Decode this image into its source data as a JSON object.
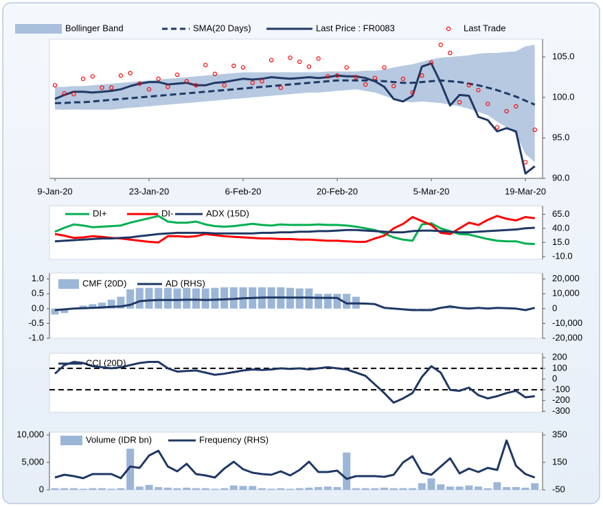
{
  "chart_data": [
    {
      "type": "line",
      "categories": [
        "9-Jan-20",
        null,
        null,
        null,
        null,
        null,
        null,
        null,
        null,
        null,
        "23-Jan-20",
        null,
        null,
        null,
        null,
        null,
        null,
        null,
        null,
        null,
        "6-Feb-20",
        null,
        null,
        null,
        null,
        null,
        null,
        null,
        null,
        null,
        "20-Feb-20",
        null,
        null,
        null,
        null,
        null,
        null,
        null,
        null,
        null,
        "5-Mar-20",
        null,
        null,
        null,
        null,
        null,
        null,
        null,
        null,
        null,
        "19-Mar-20",
        null
      ],
      "ylim": [
        90,
        107.2
      ],
      "yticks": [
        {
          "value": 90,
          "label": "90.0"
        },
        {
          "value": 95,
          "label": "95.0"
        },
        {
          "value": 100,
          "label": "100.0"
        },
        {
          "value": 105,
          "label": "105.0"
        }
      ],
      "series": [
        {
          "name": "Bollinger Band",
          "style": "band",
          "color": "#a9bfdc",
          "upper": [
            101.3,
            101.3,
            101.4,
            101.4,
            101.5,
            101.6,
            101.7,
            101.8,
            101.9,
            102.0,
            102.1,
            102.2,
            102.3,
            102.4,
            102.5,
            102.6,
            102.7,
            102.8,
            102.9,
            103.0,
            103.1,
            103.1,
            103.1,
            103.1,
            103.1,
            103.1,
            103.1,
            103.1,
            103.1,
            103.2,
            103.2,
            103.2,
            103.2,
            103.3,
            103.3,
            103.4,
            103.7,
            103.9,
            104.1,
            104.4,
            104.7,
            104.9,
            105.0,
            105.1,
            105.2,
            105.4,
            105.5,
            105.5,
            105.6,
            105.7,
            106.3,
            106.5
          ],
          "lower": [
            98.5,
            98.5,
            98.5,
            98.5,
            98.5,
            98.5,
            98.5,
            98.6,
            98.7,
            98.8,
            98.9,
            99.0,
            99.1,
            99.2,
            99.3,
            99.4,
            99.5,
            99.6,
            99.7,
            99.8,
            99.9,
            100.0,
            100.1,
            100.2,
            100.3,
            100.4,
            100.5,
            100.6,
            100.6,
            100.7,
            100.8,
            100.9,
            101.0,
            100.8,
            100.6,
            100.2,
            99.8,
            99.5,
            99.4,
            99.5,
            99.4,
            99.3,
            99.1,
            98.9,
            98.6,
            98.2,
            97.8,
            97.0,
            96.3,
            95.5,
            93.0,
            92.0
          ]
        },
        {
          "name": "SMA(20 Days)",
          "style": "dashed",
          "color": "#1f3864",
          "values": [
            99.3,
            99.3,
            99.4,
            99.4,
            99.5,
            99.6,
            99.7,
            99.8,
            99.9,
            100.0,
            100.1,
            100.2,
            100.3,
            100.4,
            100.5,
            100.6,
            100.7,
            100.8,
            100.9,
            101.0,
            101.1,
            101.2,
            101.3,
            101.4,
            101.5,
            101.6,
            101.7,
            101.8,
            101.9,
            102.0,
            102.1,
            102.1,
            102.1,
            102.1,
            102.1,
            102.0,
            101.9,
            101.8,
            101.8,
            101.9,
            102.0,
            102.1,
            102.0,
            101.9,
            101.7,
            101.5,
            101.2,
            100.9,
            100.5,
            100.1,
            99.6,
            99.1
          ]
        },
        {
          "name": "Last Price : FR0083",
          "style": "line",
          "color": "#1f3864",
          "values": [
            99.8,
            100.3,
            100.7,
            100.7,
            100.6,
            100.7,
            100.8,
            101.0,
            101.4,
            101.7,
            101.9,
            101.9,
            101.6,
            101.7,
            101.8,
            101.5,
            101.5,
            101.8,
            101.9,
            102.1,
            102.3,
            102.2,
            102.3,
            102.5,
            102.4,
            102.3,
            102.4,
            102.5,
            102.4,
            102.5,
            102.7,
            102.6,
            102.6,
            102.4,
            102.0,
            101.3,
            99.8,
            99.5,
            100.2,
            103.8,
            104.2,
            101.8,
            99.0,
            100.3,
            100.2,
            97.6,
            97.2,
            95.8,
            96.2,
            95.8,
            90.6,
            91.5
          ]
        },
        {
          "name": "Last Trade",
          "style": "markers",
          "color": "#ff0000",
          "values": [
            101.5,
            100.5,
            100.4,
            102.3,
            102.6,
            101.2,
            101.2,
            102.7,
            103.0,
            101.7,
            101.0,
            102.3,
            101.3,
            102.8,
            102.0,
            101.5,
            104.0,
            102.9,
            101.5,
            103.9,
            103.7,
            101.8,
            102.0,
            104.6,
            101.2,
            104.9,
            104.4,
            103.8,
            104.8,
            102.6,
            102.7,
            103.7,
            102.5,
            101.6,
            102.4,
            103.7,
            101.4,
            102.3,
            100.6,
            102.7,
            104.3,
            106.5,
            105.5,
            99.4,
            101.5,
            100.9,
            99.2,
            96.3,
            98.3,
            98.9,
            92.0,
            96.0
          ]
        }
      ]
    },
    {
      "type": "line",
      "ylim": [
        -15,
        80
      ],
      "yticks": [
        {
          "value": -10,
          "label": "-10.0"
        },
        {
          "value": 15,
          "label": "15.0"
        },
        {
          "value": 40,
          "label": "40.0"
        },
        {
          "value": 65,
          "label": "65.0"
        }
      ],
      "series": [
        {
          "name": "DI+",
          "style": "line",
          "color": "#00b050",
          "values": [
            34,
            41,
            47,
            45,
            42,
            43,
            44,
            45,
            50,
            54,
            58,
            62,
            52,
            50,
            50,
            52,
            47,
            44,
            43,
            44,
            46,
            48,
            46,
            45,
            47,
            46,
            46,
            46,
            47,
            46,
            46,
            45,
            43,
            40,
            37,
            31,
            24,
            20,
            18,
            47,
            49,
            40,
            35,
            30,
            29,
            25,
            21,
            18,
            17,
            17,
            13,
            12
          ]
        },
        {
          "name": "DI-",
          "style": "line",
          "color": "#ff0000",
          "values": [
            30,
            27,
            23,
            24,
            26,
            25,
            23,
            22,
            20,
            18,
            16,
            15,
            26,
            26,
            25,
            26,
            30,
            28,
            26,
            25,
            24,
            23,
            22,
            22,
            21,
            21,
            20,
            20,
            19,
            18,
            18,
            17,
            16,
            16,
            22,
            27,
            40,
            48,
            60,
            53,
            46,
            32,
            30,
            40,
            50,
            46,
            55,
            62,
            57,
            54,
            60,
            58
          ]
        },
        {
          "name": "ADX (15D)",
          "style": "line",
          "color": "#1f3864",
          "values": [
            17,
            18,
            19,
            20,
            21,
            22,
            22,
            23,
            24,
            26,
            28,
            30,
            31,
            32,
            32,
            32,
            32,
            31,
            31,
            31,
            31,
            31,
            32,
            32,
            33,
            33,
            34,
            34,
            35,
            35,
            36,
            37,
            37,
            36,
            35,
            34,
            33,
            33,
            35,
            36,
            36,
            35,
            34,
            33,
            33,
            34,
            35,
            36,
            37,
            38,
            40,
            41
          ]
        }
      ]
    },
    {
      "type": "bar",
      "ylim": [
        -1,
        1.2
      ],
      "yticks": [
        {
          "value": -1,
          "label": "-1.0"
        },
        {
          "value": -0.5,
          "label": "-0.5"
        },
        {
          "value": 0,
          "label": "0.0"
        },
        {
          "value": 0.5,
          "label": "0.5"
        },
        {
          "value": 1,
          "label": "1.0"
        }
      ],
      "y2lim": [
        -20000,
        24000
      ],
      "y2ticks": [
        {
          "value": -20000,
          "label": "-20,000"
        },
        {
          "value": -10000,
          "label": "-10,000"
        },
        0,
        {
          "value": 10000,
          "label": "10,000"
        },
        {
          "value": 20000,
          "label": "20,000"
        }
      ],
      "series": [
        {
          "name": "CMF (20D)",
          "style": "bar",
          "color": "#9cb6d8",
          "values": [
            -0.2,
            -0.15,
            0.0,
            0.1,
            0.15,
            0.2,
            0.3,
            0.4,
            0.65,
            0.7,
            0.7,
            0.7,
            0.7,
            0.68,
            0.7,
            0.68,
            0.68,
            0.7,
            0.72,
            0.72,
            0.72,
            0.72,
            0.72,
            0.72,
            0.72,
            0.7,
            0.68,
            0.68,
            0.5,
            0.5,
            0.5,
            0.5,
            0.4,
            0.0,
            0.0,
            0.0,
            -0.02,
            -0.02,
            -0.02,
            -0.02,
            0.02,
            0.05,
            0.03,
            0.02,
            0.0,
            0.0,
            0.0,
            0.0,
            0.0,
            0.0,
            0.0,
            0.0
          ]
        },
        {
          "name": "AD (RHS)",
          "style": "line",
          "axis": "y2",
          "color": "#1f3864",
          "values": [
            -1000,
            -500,
            0,
            300,
            500,
            800,
            1200,
            1500,
            2500,
            5000,
            5500,
            5800,
            5800,
            5800,
            6000,
            6000,
            5800,
            6000,
            6200,
            6500,
            7000,
            7200,
            7400,
            7500,
            7500,
            7400,
            7400,
            7400,
            7300,
            7300,
            7200,
            3500,
            3500,
            3400,
            3000,
            500,
            0,
            -500,
            -1000,
            -1000,
            -1000,
            500,
            1500,
            500,
            0,
            500,
            0,
            500,
            300,
            0,
            -1000,
            500
          ]
        }
      ]
    },
    {
      "type": "line",
      "ylim": [
        -310,
        240
      ],
      "yticks": [
        -300,
        -200,
        -100,
        0,
        100,
        200
      ],
      "hlines": [
        100,
        -100
      ],
      "series": [
        {
          "name": "CCI (20D)",
          "style": "line",
          "color": "#1f3864",
          "values": [
            50,
            130,
            160,
            150,
            120,
            110,
            100,
            110,
            130,
            150,
            160,
            160,
            100,
            70,
            75,
            80,
            60,
            40,
            50,
            65,
            80,
            90,
            85,
            90,
            100,
            95,
            100,
            90,
            100,
            110,
            100,
            90,
            60,
            30,
            -50,
            -130,
            -220,
            -180,
            -130,
            20,
            120,
            60,
            -100,
            -110,
            -80,
            -150,
            -180,
            -160,
            -130,
            -110,
            -170,
            -160
          ]
        }
      ]
    },
    {
      "type": "bar",
      "ylim": [
        0,
        10500
      ],
      "yticks": [
        0,
        {
          "value": 5000,
          "label": "5,000"
        },
        {
          "value": 10000,
          "label": "10,000"
        }
      ],
      "y2lim": [
        -50,
        370
      ],
      "y2ticks": [
        -50,
        150,
        350
      ],
      "series": [
        {
          "name": "Volume (IDR bn)",
          "style": "bar",
          "color": "#9cb6d8",
          "values": [
            300,
            300,
            300,
            200,
            300,
            300,
            200,
            300,
            7500,
            600,
            900,
            500,
            400,
            300,
            400,
            300,
            300,
            200,
            300,
            800,
            700,
            700,
            300,
            200,
            300,
            200,
            300,
            400,
            500,
            600,
            500,
            6800,
            300,
            300,
            300,
            400,
            300,
            300,
            300,
            1200,
            2100,
            1000,
            600,
            600,
            800,
            600,
            300,
            1400,
            500,
            500,
            400,
            1200
          ]
        },
        {
          "name": "Frequency (RHS)",
          "style": "line",
          "axis": "y2",
          "color": "#1f3864",
          "values": [
            40,
            60,
            50,
            35,
            65,
            65,
            65,
            35,
            120,
            110,
            200,
            235,
            120,
            85,
            140,
            65,
            55,
            40,
            105,
            155,
            100,
            75,
            65,
            60,
            85,
            55,
            95,
            155,
            80,
            80,
            90,
            30,
            50,
            50,
            50,
            45,
            60,
            150,
            195,
            75,
            60,
            120,
            180,
            70,
            105,
            80,
            110,
            95,
            310,
            125,
            65,
            40
          ]
        }
      ]
    }
  ]
}
